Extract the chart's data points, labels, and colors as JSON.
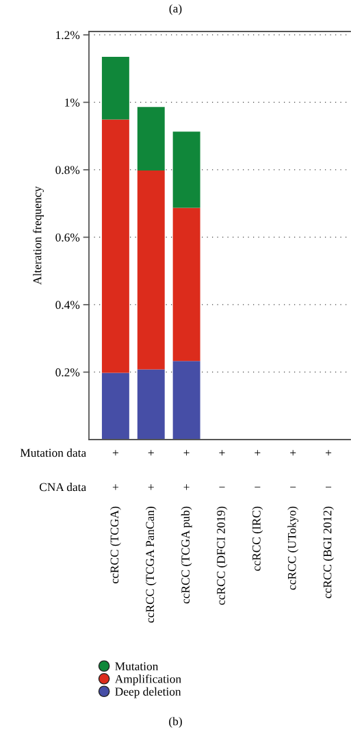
{
  "chart_data": {
    "type": "bar",
    "title": "(a)",
    "ylabel": "Alteration frequency",
    "stacked": true,
    "categories": [
      "ccRCC (TCGA)",
      "ccRCC (TCGA PanCan)",
      "ccRCC (TCGA pub)",
      "ccRCC (DFCI 2019)",
      "ccRCC (IRC)",
      "ccRCC (UTokyo)",
      "ccRCC (BGI 2012)"
    ],
    "series": [
      {
        "name": "Deep deletion",
        "color": "#464ea6",
        "values": [
          0.198,
          0.208,
          0.233,
          0,
          0,
          0,
          0
        ]
      },
      {
        "name": "Amplification",
        "color": "#dc2c1c",
        "values": [
          0.751,
          0.59,
          0.454,
          0,
          0,
          0,
          0
        ]
      },
      {
        "name": "Mutation",
        "color": "#10873a",
        "values": [
          0.186,
          0.188,
          0.226,
          0,
          0,
          0,
          0
        ]
      }
    ],
    "ylim": [
      0,
      1.21
    ],
    "yticks": [
      {
        "value": 0.2,
        "label": "0.2%"
      },
      {
        "value": 0.4,
        "label": "0.4%"
      },
      {
        "value": 0.6,
        "label": "0.6%"
      },
      {
        "value": 0.8,
        "label": "0.8%"
      },
      {
        "value": 1,
        "label": "1%"
      },
      {
        "value": 1.2,
        "label": "1.2%"
      }
    ],
    "grid": "y",
    "legend": "bottom",
    "marker": "circle",
    "annotations": [
      "(b)",
      "Mutation data",
      "CNA data",
      "+",
      "+",
      "+",
      "+",
      "+",
      "+",
      "+",
      "+",
      "+",
      "+",
      "−",
      "−",
      "−",
      "−"
    ]
  }
}
